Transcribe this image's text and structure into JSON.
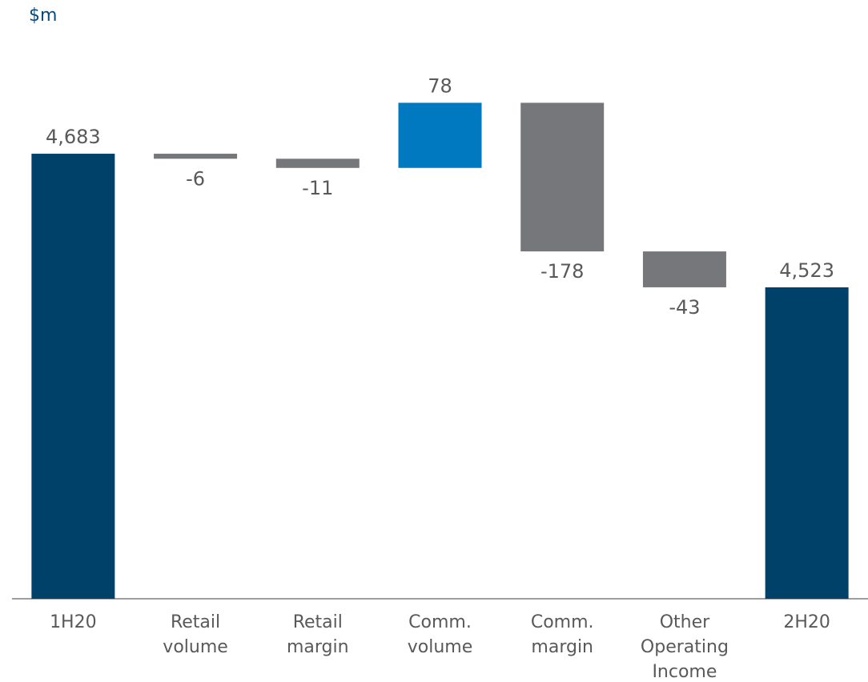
{
  "chart_data": {
    "type": "waterfall",
    "y_label": "$m",
    "categories": [
      "1H20",
      "Retail volume",
      "Retail margin",
      "Comm. volume",
      "Comm. margin",
      "Other Operating Income",
      "2H20"
    ],
    "values": [
      4683,
      -6,
      -11,
      78,
      -178,
      -43,
      4523
    ],
    "value_labels": [
      "4,683",
      "-6",
      "-11",
      "78",
      "-178",
      "-43",
      "4,523"
    ],
    "colors": {
      "total": "#00416a",
      "increase": "#0079c1",
      "decrease": "#76777a"
    },
    "ylim": [
      4150,
      4800
    ]
  }
}
